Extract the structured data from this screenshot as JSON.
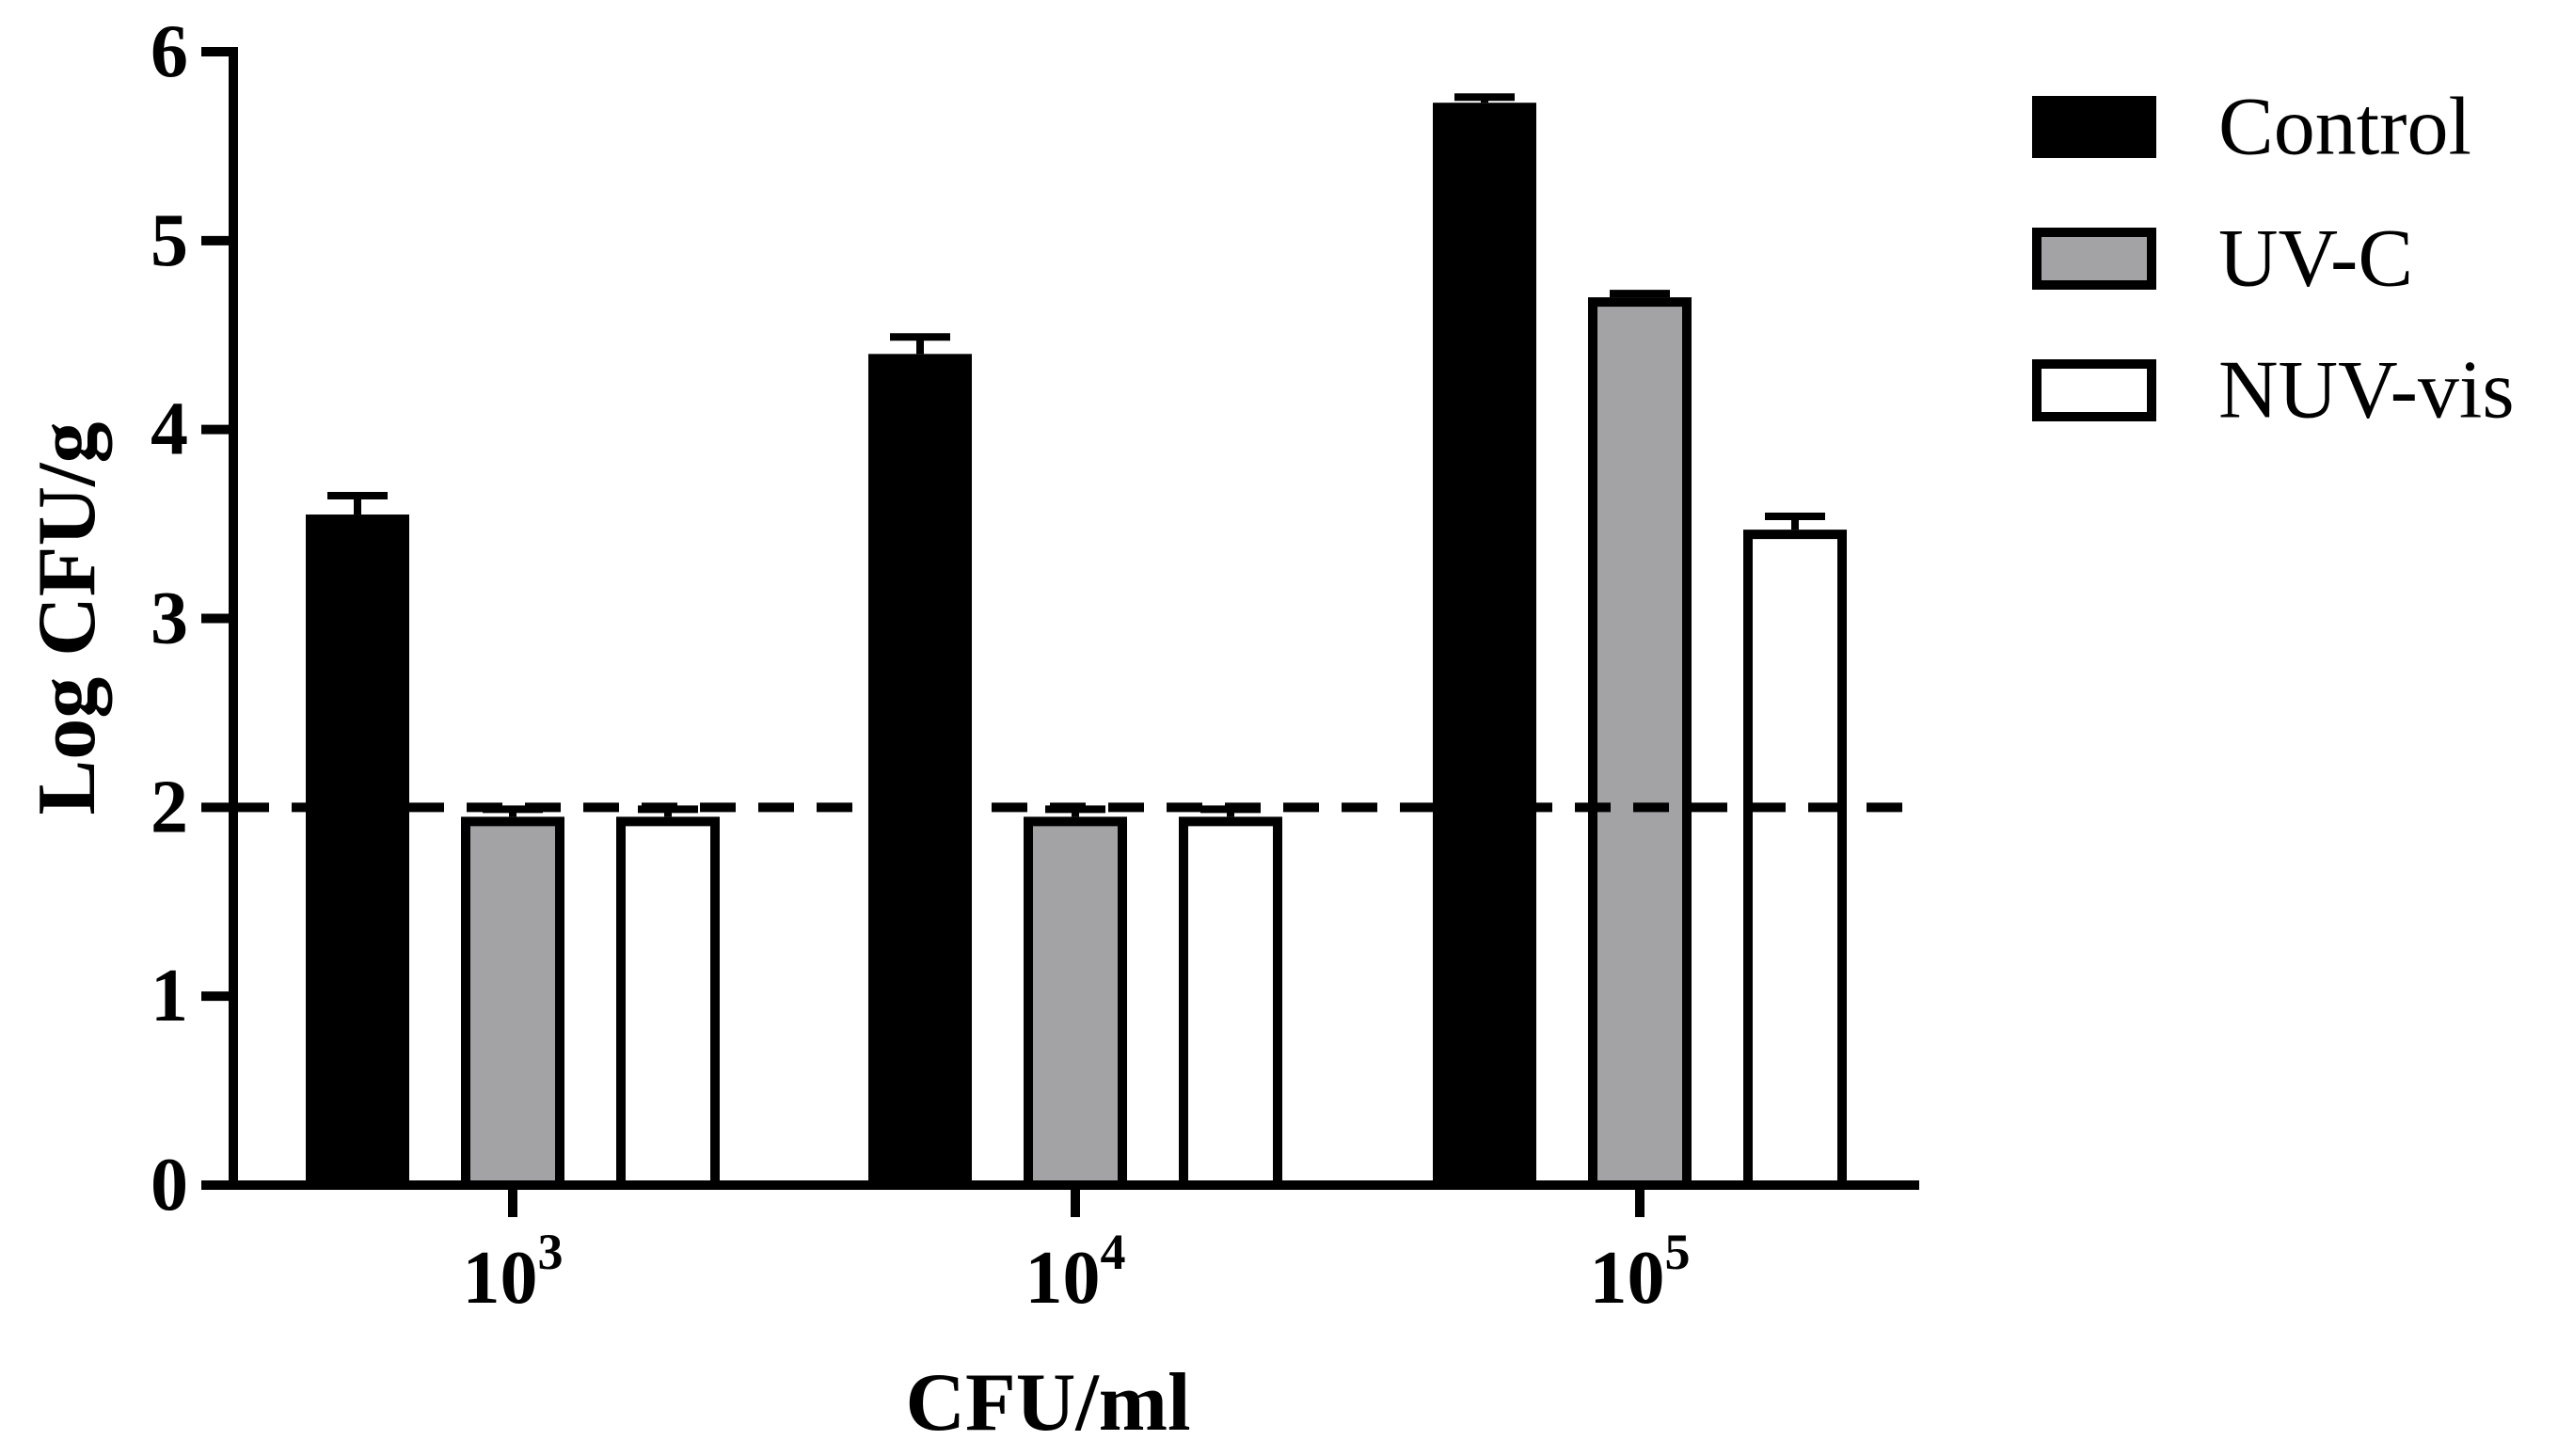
{
  "chart_data": {
    "type": "bar",
    "xlabel": "CFU/ml",
    "ylabel": "Log CFU/g",
    "ylim": [
      0,
      6
    ],
    "yticks": [
      "0",
      "1",
      "2",
      "3",
      "4",
      "5",
      "6"
    ],
    "categories": [
      {
        "base": "10",
        "exp": "3"
      },
      {
        "base": "10",
        "exp": "4"
      },
      {
        "base": "10",
        "exp": "5"
      }
    ],
    "series": [
      {
        "name": "Control",
        "color": "#000000",
        "values": [
          3.55,
          4.4,
          5.73
        ],
        "errors": [
          0.1,
          0.09,
          0.03
        ]
      },
      {
        "name": "UV-C",
        "color": "#a3a3a6",
        "values": [
          1.95,
          1.95,
          4.7
        ],
        "errors": [
          0.04,
          0.04,
          0.02
        ]
      },
      {
        "name": "NUV-vis",
        "color": "#ffffff",
        "values": [
          1.95,
          1.95,
          3.47
        ],
        "errors": [
          0.04,
          0.04,
          0.07
        ]
      }
    ],
    "reference_line": {
      "y": 2,
      "style": "dashed"
    },
    "legend_position": "top-right",
    "grid": false
  }
}
